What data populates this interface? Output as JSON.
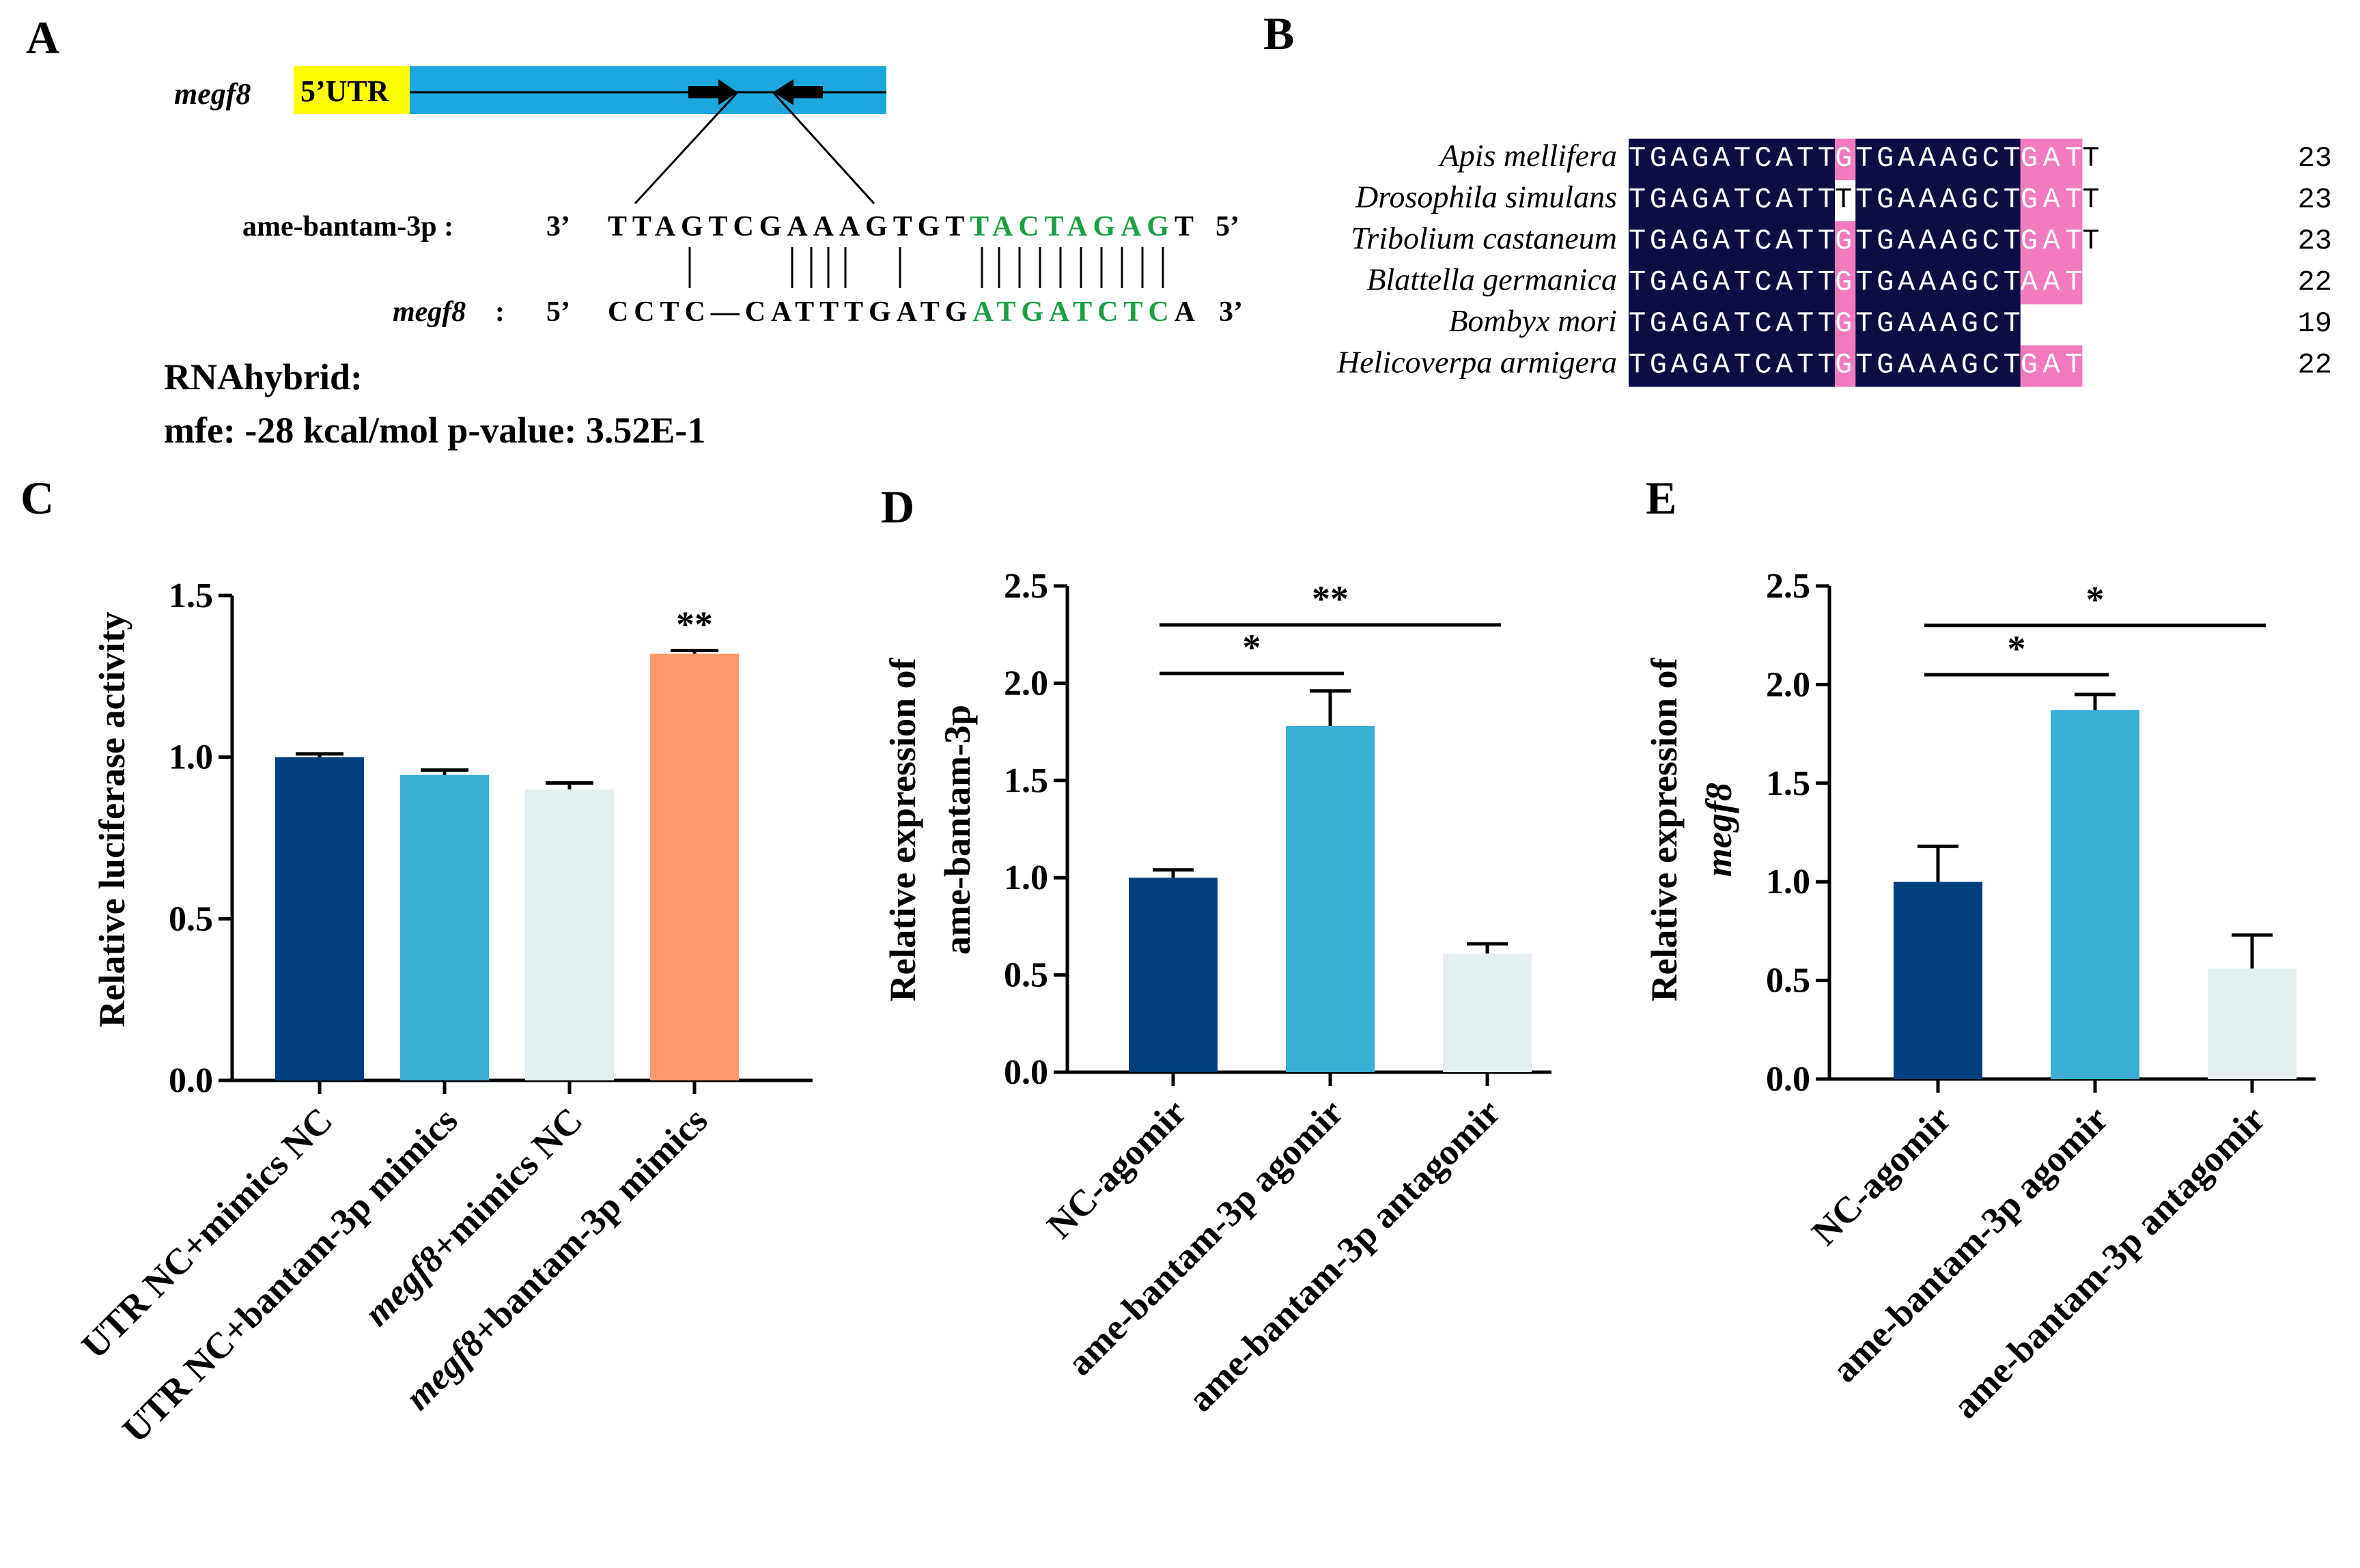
{
  "panel_letters": {
    "a": "A",
    "b": "B",
    "c": "C",
    "d": "D",
    "e": "E"
  },
  "panel_a": {
    "gene_label": "megf8",
    "utr_label": "5’UTR",
    "mirna_label": "ame-bantam-3p :",
    "mirna_end5": "3’",
    "mirna_seq": [
      "TTAGTCGAAAGTGT",
      "TACTAGAG",
      "T"
    ],
    "mirna_end3": "5’",
    "target_label": "megf8",
    "target_colon": ":",
    "target_end5": "5’",
    "target_seq": [
      "CCTC—CATTTGATG",
      "ATGATCTC",
      "A"
    ],
    "target_end3": "3’",
    "tool": "RNAhybrid:",
    "stats": "mfe: -28 kcal/mol p-value: 3.52E-1",
    "colors": {
      "utr": "#ffff00",
      "cds": "#1ca7df",
      "seed": "#1a9f45"
    }
  },
  "panel_b": {
    "rows": [
      {
        "species": "Apis mellifera",
        "core1": "TGAGATCATT",
        "mid": "G",
        "core2": "TGAAAGCT",
        "tail_hl": "GAT",
        "tail_plain": "T",
        "length": "23"
      },
      {
        "species": "Drosophila simulans",
        "core1": "TGAGATCATT",
        "mid": "T",
        "core2": "TGAAAGCT",
        "tail_hl": "GAT",
        "tail_plain": "T",
        "length": "23"
      },
      {
        "species": "Tribolium castaneum",
        "core1": "TGAGATCATT",
        "mid": "G",
        "core2": "TGAAAGCT",
        "tail_hl": "GAT",
        "tail_plain": "T",
        "length": "23"
      },
      {
        "species": "Blattella germanica",
        "core1": "TGAGATCATT",
        "mid": "G",
        "core2": "TGAAAGCT",
        "tail_hl": "AAT",
        "tail_plain": "",
        "length": "22"
      },
      {
        "species": "Bombyx mori",
        "core1": "TGAGATCATT",
        "mid": "G",
        "core2": "TGAAAGCT",
        "tail_hl": "",
        "tail_plain": "",
        "length": "19"
      },
      {
        "species": "Helicoverpa armigera",
        "core1": "TGAGATCATT",
        "mid": "G",
        "core2": "TGAAAGCT",
        "tail_hl": "GAT",
        "tail_plain": "",
        "length": "22"
      }
    ],
    "colors": {
      "conserved": "#0d0d45",
      "partial": "#f27bbd"
    }
  },
  "chart_data": [
    {
      "panel": "C",
      "type": "bar",
      "categories": [
        "UTR NC+mimics NC",
        "UTR NC+bantam-3p mimics",
        "megf8+mimics NC",
        "megf8+bantam-3p mimics"
      ],
      "italic_prefix": [
        "",
        "",
        "megf8",
        "megf8"
      ],
      "values": [
        1.0,
        0.945,
        0.9,
        1.32
      ],
      "errors": [
        0.01,
        0.015,
        0.02,
        0.01
      ],
      "colors": [
        "#003f7f",
        "#3aafd6",
        "#e4eff2",
        "#fd9a6c"
      ],
      "ylabel": "Relative luciferase activity",
      "ylim": [
        0,
        1.5
      ],
      "yticks": [
        "0.0",
        "0.5",
        "1.0",
        "1.5"
      ],
      "annotations": [
        {
          "bar": 3,
          "text": "**"
        }
      ]
    },
    {
      "panel": "D",
      "type": "bar",
      "categories": [
        "NC-agomir",
        "ame-bantam-3p agomir",
        "ame-bantam-3p antagomir"
      ],
      "values": [
        1.0,
        1.78,
        0.61
      ],
      "errors": [
        0.04,
        0.18,
        0.05
      ],
      "colors": [
        "#003f7f",
        "#3aafd6",
        "#e4eff2"
      ],
      "ylabel": [
        "Relative expression of",
        "ame-bantam-3p"
      ],
      "ylim": [
        0,
        2.5
      ],
      "yticks": [
        "0.0",
        "0.5",
        "1.0",
        "1.5",
        "2.0",
        "2.5"
      ],
      "comparisons": [
        {
          "from": 0,
          "to": 1,
          "text": "*",
          "y": 2.05
        },
        {
          "from": 0,
          "to": 2,
          "text": "**",
          "y": 2.3
        }
      ]
    },
    {
      "panel": "E",
      "type": "bar",
      "categories": [
        "NC-agomir",
        "ame-bantam-3p agomir",
        "ame-bantam-3p antagomir"
      ],
      "values": [
        1.0,
        1.87,
        0.56
      ],
      "errors": [
        0.18,
        0.08,
        0.17
      ],
      "colors": [
        "#003f7f",
        "#3aafd6",
        "#e4eff2"
      ],
      "ylabel": [
        "Relative expression of",
        "megf8"
      ],
      "ylim": [
        0,
        2.5
      ],
      "yticks": [
        "0.0",
        "0.5",
        "1.0",
        "1.5",
        "2.0",
        "2.5"
      ],
      "comparisons": [
        {
          "from": 0,
          "to": 1,
          "text": "*",
          "y": 2.05
        },
        {
          "from": 0,
          "to": 2,
          "text": "*",
          "y": 2.3
        }
      ]
    }
  ]
}
